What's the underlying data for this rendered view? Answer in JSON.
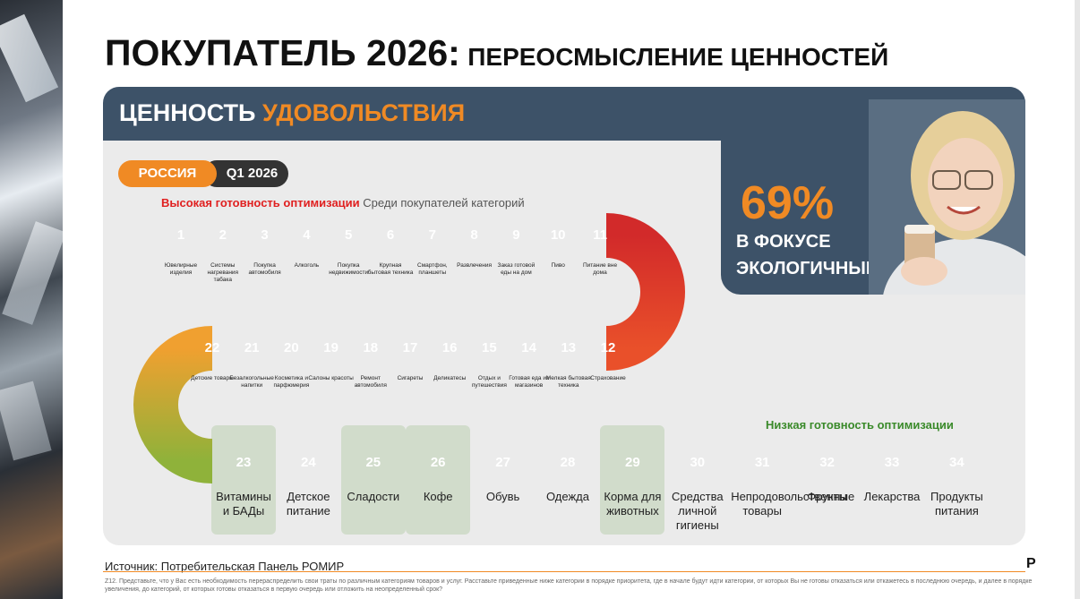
{
  "title": {
    "main": "ПОКУПАТЕЛЬ 2026:",
    "sub": "ПЕРЕОСМЫСЛЕНИЕ ЦЕННОСТЕЙ"
  },
  "card": {
    "title_part1": "ЦЕННОСТЬ",
    "title_part2": "УДОВОЛЬСТВИЯ",
    "region": "РОССИЯ",
    "period": "Q1 2026",
    "high_label": "Высокая готовность оптимизации",
    "high_label_suffix": "Среди покупателей категорий",
    "low_label": "Низкая готовность оптимизации",
    "stat_value": "69%",
    "stat_caption_line1": "В ФОКУСЕ",
    "stat_caption_line2": "ЭКОЛОГИЧНЫЕ РАДОСТИ"
  },
  "colors": {
    "accent": "#f08a24",
    "navy": "#3d5268",
    "red": "#d62a2a",
    "green": "#4a8f2e"
  },
  "rows": [
    {
      "items": [
        {
          "n": "1",
          "label": "Ювелирные изделия"
        },
        {
          "n": "2",
          "label": "Системы нагревания табака"
        },
        {
          "n": "3",
          "label": "Покупка автомобиля"
        },
        {
          "n": "4",
          "label": "Алкоголь"
        },
        {
          "n": "5",
          "label": "Покупка недвижимости"
        },
        {
          "n": "6",
          "label": "Крупная бытовая техника"
        },
        {
          "n": "7",
          "label": "Смартфон, планшеты"
        },
        {
          "n": "8",
          "label": "Развлечения"
        },
        {
          "n": "9",
          "label": "Заказ готовой еды на дом"
        },
        {
          "n": "10",
          "label": "Пиво"
        },
        {
          "n": "11",
          "label": "Питание вне дома"
        }
      ]
    },
    {
      "items": [
        {
          "n": "22",
          "label": "Детские товары"
        },
        {
          "n": "21",
          "label": "Безалкогольные напитки"
        },
        {
          "n": "20",
          "label": "Косметика и парфюмерия"
        },
        {
          "n": "19",
          "label": "Салоны красоты"
        },
        {
          "n": "18",
          "label": "Ремонт автомобиля"
        },
        {
          "n": "17",
          "label": "Сигареты"
        },
        {
          "n": "16",
          "label": "Деликатесы"
        },
        {
          "n": "15",
          "label": "Отдых и путешествия"
        },
        {
          "n": "14",
          "label": "Готовая еда из магазинов"
        },
        {
          "n": "13",
          "label": "Мелкая бытовая техника"
        },
        {
          "n": "12",
          "label": "Страхование"
        }
      ]
    },
    {
      "items": [
        {
          "n": "23",
          "label": "Витамины и БАДы"
        },
        {
          "n": "24",
          "label": "Детское питание"
        },
        {
          "n": "25",
          "label": "Сладости"
        },
        {
          "n": "26",
          "label": "Кофе"
        },
        {
          "n": "27",
          "label": "Обувь"
        },
        {
          "n": "28",
          "label": "Одежда"
        },
        {
          "n": "29",
          "label": "Корма для животных"
        },
        {
          "n": "30",
          "label": "Средства личной гигиены"
        },
        {
          "n": "31",
          "label": "Непродовольственные товары"
        },
        {
          "n": "32",
          "label": "Фрукты"
        },
        {
          "n": "33",
          "label": "Лекарства"
        },
        {
          "n": "34",
          "label": "Продукты питания"
        }
      ]
    }
  ],
  "highlighted": [
    "23",
    "25",
    "26",
    "29"
  ],
  "footer": {
    "source": "Источник: Потребительская Панель РОМИР",
    "logo": "P",
    "note": "Z12. Представьте, что у Вас есть необходимость перераспределить свои траты по различным категориям товаров и услуг. Расставьте приведенные ниже категории в порядке приоритета, где в начале будут идти категории, от которых Вы не готовы отказаться или откажетесь в последнюю очередь, и далее в порядке увеличения, до категорий, от которых готовы отказаться в первую очередь или отложить на неопределенный срок?"
  }
}
